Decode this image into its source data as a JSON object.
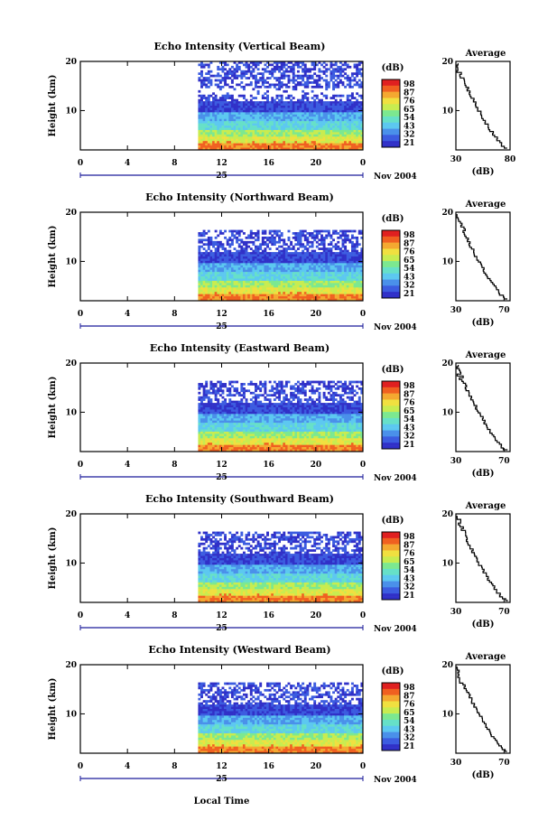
{
  "colors": {
    "background": "#ffffff",
    "scale": [
      "#3030c8",
      "#3c5ce0",
      "#4a90ea",
      "#5cc8f0",
      "#66e0c8",
      "#7ce890",
      "#c8ec50",
      "#f0e040",
      "#f4a830",
      "#f06020",
      "#e02020"
    ]
  },
  "chart_data": [
    {
      "type": "heatmap",
      "title": "Echo Intensity (Vertical Beam)",
      "ylabel": "Height (km)",
      "yticks": [
        "20",
        "10"
      ],
      "ylim": [
        2,
        20
      ],
      "xticks": [
        "0",
        "4",
        "8",
        "12",
        "16",
        "20",
        "0"
      ],
      "xlim": [
        0,
        24
      ],
      "date_day": "25",
      "date_month": "Nov 2004",
      "data_start_hour": 10,
      "colorbar": {
        "unit": "(dB)",
        "ticks": [
          "98",
          "87",
          "76",
          "65",
          "54",
          "43",
          "32",
          "21"
        ]
      },
      "average_panel": {
        "title": "Average",
        "xlabel": "(dB)",
        "xticks": [
          "30",
          "80"
        ],
        "xlim": [
          30,
          80
        ],
        "yticks": [
          "20",
          "10"
        ]
      }
    },
    {
      "type": "heatmap",
      "title": "Echo Intensity (Northward Beam)",
      "ylabel": "Height (km)",
      "yticks": [
        "20",
        "10"
      ],
      "ylim": [
        2,
        20
      ],
      "xticks": [
        "0",
        "4",
        "8",
        "12",
        "16",
        "20",
        "0"
      ],
      "xlim": [
        0,
        24
      ],
      "date_day": "25",
      "date_month": "Nov 2004",
      "data_start_hour": 10,
      "colorbar": {
        "unit": "(dB)",
        "ticks": [
          "98",
          "87",
          "76",
          "65",
          "54",
          "43",
          "32",
          "21"
        ]
      },
      "average_panel": {
        "title": "Average",
        "xlabel": "(dB)",
        "xticks": [
          "30",
          "70"
        ],
        "xlim": [
          30,
          75
        ],
        "yticks": [
          "20",
          "10"
        ]
      }
    },
    {
      "type": "heatmap",
      "title": "Echo Intensity (Eastward Beam)",
      "ylabel": "Height (km)",
      "yticks": [
        "20",
        "10"
      ],
      "ylim": [
        2,
        20
      ],
      "xticks": [
        "0",
        "4",
        "8",
        "12",
        "16",
        "20",
        "0"
      ],
      "xlim": [
        0,
        24
      ],
      "date_day": "25",
      "date_month": "Nov 2004",
      "data_start_hour": 10,
      "colorbar": {
        "unit": "(dB)",
        "ticks": [
          "98",
          "87",
          "76",
          "65",
          "54",
          "43",
          "32",
          "21"
        ]
      },
      "average_panel": {
        "title": "Average",
        "xlabel": "(dB)",
        "xticks": [
          "30",
          "70"
        ],
        "xlim": [
          30,
          75
        ],
        "yticks": [
          "20",
          "10"
        ]
      }
    },
    {
      "type": "heatmap",
      "title": "Echo Intensity (Southward Beam)",
      "ylabel": "Height (km)",
      "yticks": [
        "20",
        "10"
      ],
      "ylim": [
        2,
        20
      ],
      "xticks": [
        "0",
        "4",
        "8",
        "12",
        "16",
        "20",
        "0"
      ],
      "xlim": [
        0,
        24
      ],
      "date_day": "25",
      "date_month": "Nov 2004",
      "data_start_hour": 10,
      "colorbar": {
        "unit": "(dB)",
        "ticks": [
          "98",
          "87",
          "76",
          "65",
          "54",
          "43",
          "32",
          "21"
        ]
      },
      "average_panel": {
        "title": "Average",
        "xlabel": "(dB)",
        "xticks": [
          "30",
          "70"
        ],
        "xlim": [
          30,
          75
        ],
        "yticks": [
          "20",
          "10"
        ]
      }
    },
    {
      "type": "heatmap",
      "title": "Echo Intensity (Westward Beam)",
      "ylabel": "Height (km)",
      "yticks": [
        "20",
        "10"
      ],
      "ylim": [
        2,
        20
      ],
      "xticks": [
        "0",
        "4",
        "8",
        "12",
        "16",
        "20",
        "0"
      ],
      "xlim": [
        0,
        24
      ],
      "date_day": "25",
      "date_month": "Nov 2004",
      "data_start_hour": 10,
      "colorbar": {
        "unit": "(dB)",
        "ticks": [
          "98",
          "87",
          "76",
          "65",
          "54",
          "43",
          "32",
          "21"
        ]
      },
      "average_panel": {
        "title": "Average",
        "xlabel": "(dB)",
        "xticks": [
          "30",
          "70"
        ],
        "xlim": [
          30,
          75
        ],
        "yticks": [
          "20",
          "10"
        ]
      },
      "xlabel": "Local Time"
    }
  ]
}
